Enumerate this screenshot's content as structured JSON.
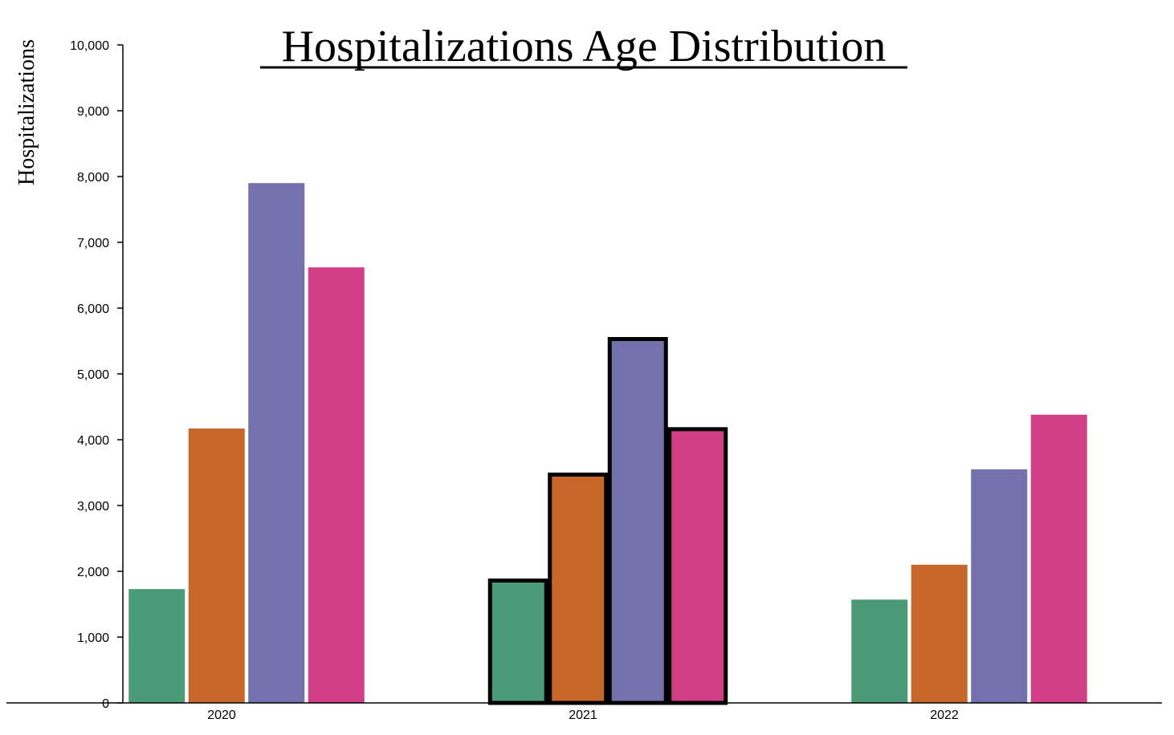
{
  "chart_data": {
    "type": "bar",
    "title": "Hospitalizations Age Distribution",
    "xlabel": "",
    "ylabel": "Hospitalizations",
    "ylim": [
      0,
      10000
    ],
    "yticks": [
      "0",
      "1,000",
      "2,000",
      "3,000",
      "4,000",
      "5,000",
      "6,000",
      "7,000",
      "8,000",
      "9,000",
      "10,000"
    ],
    "categories": [
      "2020",
      "2021",
      "2022"
    ],
    "series": [
      {
        "color": "#4c9b78",
        "values": [
          1730,
          1860,
          1570
        ]
      },
      {
        "color": "#c8662a",
        "values": [
          4170,
          3470,
          2100
        ]
      },
      {
        "color": "#7570ae",
        "values": [
          7900,
          5530,
          3550
        ]
      },
      {
        "color": "#d33f87",
        "values": [
          6620,
          4160,
          4380
        ]
      }
    ],
    "highlighted_category": "2021",
    "grid": false,
    "legend": "none"
  }
}
